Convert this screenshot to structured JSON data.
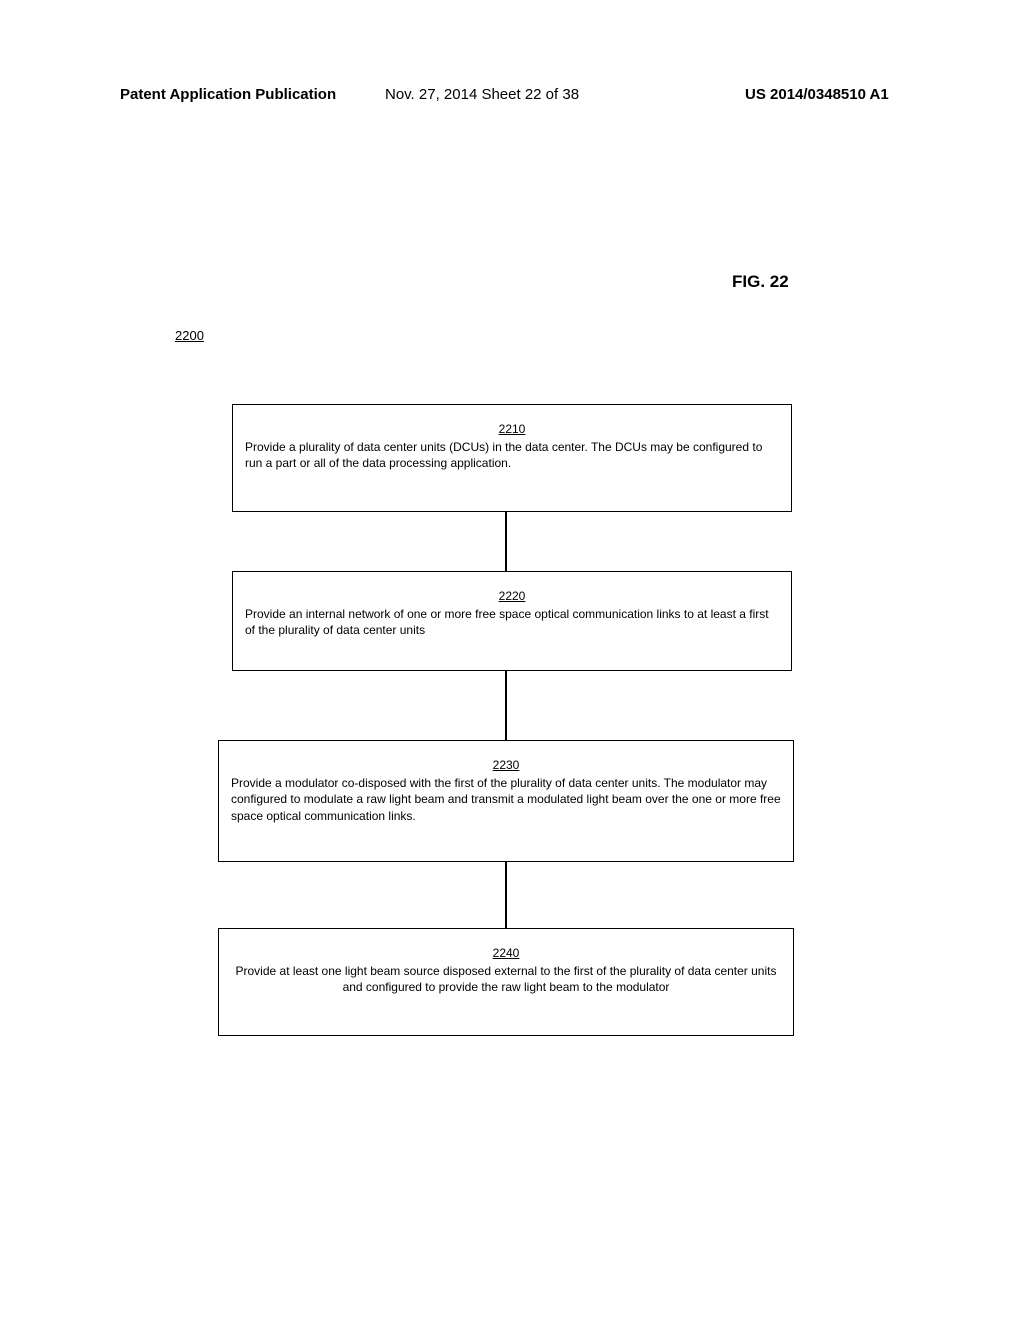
{
  "header": {
    "left": "Patent Application Publication",
    "center": "Nov. 27, 2014   Sheet 22 of 38",
    "right": "US 2014/0348510 A1"
  },
  "fig_label": "FIG. 22",
  "flow_ref": "2200",
  "boxes": {
    "b1": {
      "num": "2210",
      "text": "Provide a plurality of data center units (DCUs) in the data center.  The DCUs may be configured to run a part or all of the data processing application."
    },
    "b2": {
      "num": "2220",
      "text": "Provide an internal network of one or more free space optical communication links to at least a first of the plurality of data center units"
    },
    "b3": {
      "num": "2230",
      "text": "Provide a modulator co-disposed with the first of the plurality of data center units.  The modulator may configured to modulate a raw light beam and transmit a modulated light beam over the one or more free space optical communication links."
    },
    "b4": {
      "num": "2240",
      "text": "Provide at least one light beam source disposed external to the first of the plurality of data center units and configured to provide the raw light beam to the modulator"
    }
  }
}
